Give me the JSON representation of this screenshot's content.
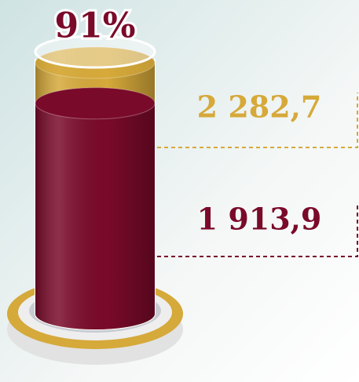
{
  "chart_data": {
    "type": "cylinder",
    "title": "91%",
    "values": [
      2282.7,
      1913.9
    ],
    "value_labels": [
      "2 282,7",
      "1 913,9"
    ],
    "colors": [
      "#d6a93a",
      "#7a0a2a"
    ]
  }
}
